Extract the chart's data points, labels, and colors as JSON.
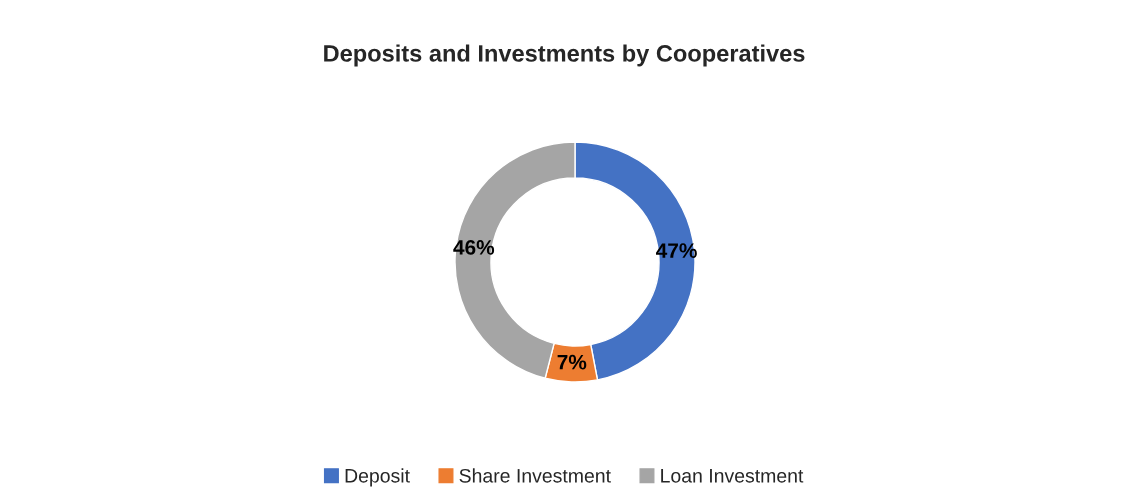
{
  "chart_data": {
    "type": "donut",
    "title": "Deposits and Investments by Cooperatives",
    "categories": [
      "Deposit",
      "Share Investment",
      "Loan Investment"
    ],
    "values": [
      47,
      7,
      46
    ],
    "colors": [
      "#4472c4",
      "#ed7d31",
      "#a5a5a5"
    ],
    "value_labels": [
      "47%",
      "7%",
      "46%"
    ],
    "legend": "bottom"
  }
}
